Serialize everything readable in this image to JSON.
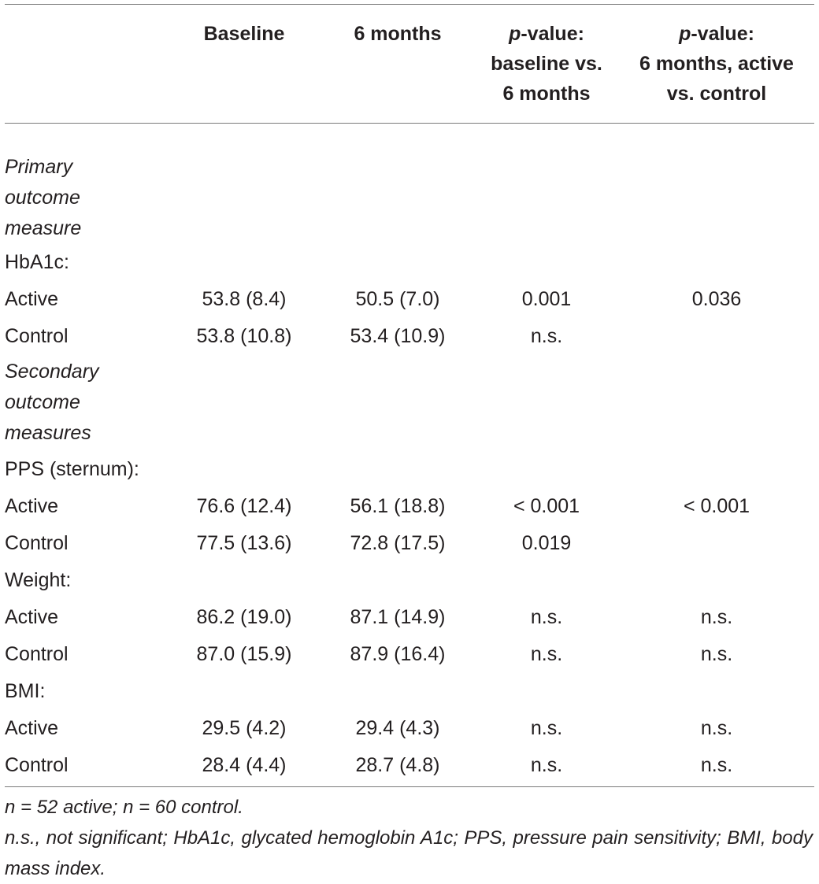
{
  "table": {
    "headers": [
      "",
      "Baseline",
      "6 months",
      {
        "italic": "p",
        "line1_rest": "-value:",
        "line2": "baseline vs.",
        "line3": "6 months"
      },
      {
        "italic": "p",
        "line1_rest": "-value:",
        "line2": "6 months, active",
        "line3": "vs. control"
      }
    ],
    "sections": {
      "primary": [
        "Primary",
        "outcome",
        "measure"
      ],
      "secondary": [
        "Secondary",
        "outcome",
        "measures"
      ]
    },
    "rows": {
      "hba1c": {
        "label": "HbA1c:"
      },
      "hba1c_active": {
        "label": "Active",
        "baseline": "53.8 (8.4)",
        "six_months": "50.5 (7.0)",
        "p_time": "0.001",
        "p_group": "0.036"
      },
      "hba1c_control": {
        "label": "Control",
        "baseline": "53.8 (10.8)",
        "six_months": "53.4 (10.9)",
        "p_time": "n.s.",
        "p_group": ""
      },
      "pps": {
        "label": "PPS (sternum):"
      },
      "pps_active": {
        "label": "Active",
        "baseline": "76.6 (12.4)",
        "six_months": "56.1 (18.8)",
        "p_time": "< 0.001",
        "p_group": "< 0.001"
      },
      "pps_control": {
        "label": "Control",
        "baseline": "77.5 (13.6)",
        "six_months": "72.8 (17.5)",
        "p_time": "0.019",
        "p_group": ""
      },
      "weight": {
        "label": "Weight:"
      },
      "weight_active": {
        "label": "Active",
        "baseline": "86.2 (19.0)",
        "six_months": "87.1 (14.9)",
        "p_time": "n.s.",
        "p_group": "n.s."
      },
      "weight_control": {
        "label": "Control",
        "baseline": "87.0 (15.9)",
        "six_months": "87.9 (16.4)",
        "p_time": "n.s.",
        "p_group": "n.s."
      },
      "bmi": {
        "label": "BMI:"
      },
      "bmi_active": {
        "label": "Active",
        "baseline": "29.5 (4.2)",
        "six_months": "29.4 (4.3)",
        "p_time": "n.s.",
        "p_group": "n.s."
      },
      "bmi_control": {
        "label": "Control",
        "baseline": "28.4 (4.4)",
        "six_months": "28.7 (4.8)",
        "p_time": "n.s.",
        "p_group": "n.s."
      }
    }
  },
  "footnotes": {
    "line1": "n = 52 active; n = 60 control.",
    "line2": "n.s., not significant; HbA1c, glycated hemoglobin A1c; PPS, pressure pain sensitivity; BMI, body mass index."
  }
}
